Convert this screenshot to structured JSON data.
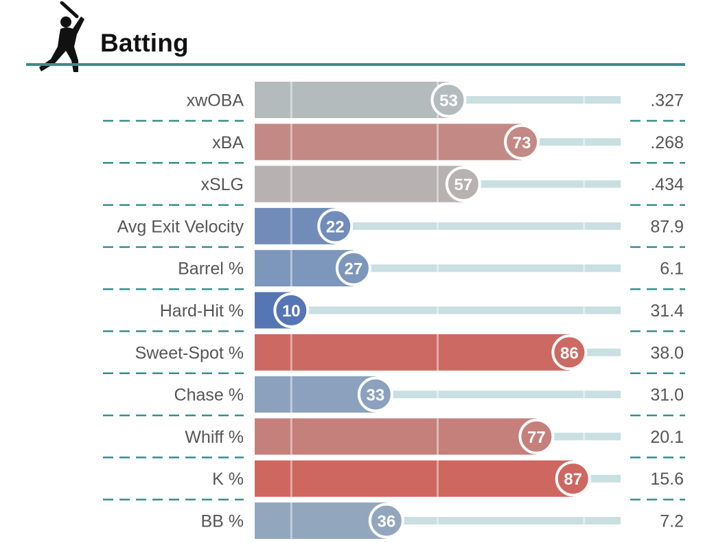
{
  "header": {
    "title": "Batting",
    "icon": "batter-silhouette-icon"
  },
  "chart_data": {
    "type": "bar",
    "title": "Batting",
    "xlim": [
      0,
      100
    ],
    "metrics": [
      {
        "label": "xwOBA",
        "percentile": 53,
        "value": ".327"
      },
      {
        "label": "xBA",
        "percentile": 73,
        "value": ".268"
      },
      {
        "label": "xSLG",
        "percentile": 57,
        "value": ".434"
      },
      {
        "label": "Avg Exit Velocity",
        "percentile": 22,
        "value": "87.9"
      },
      {
        "label": "Barrel %",
        "percentile": 27,
        "value": "6.1"
      },
      {
        "label": "Hard-Hit %",
        "percentile": 10,
        "value": "31.4"
      },
      {
        "label": "Sweet-Spot %",
        "percentile": 86,
        "value": "38.0"
      },
      {
        "label": "Chase %",
        "percentile": 33,
        "value": "31.0"
      },
      {
        "label": "Whiff %",
        "percentile": 77,
        "value": "20.1"
      },
      {
        "label": "K %",
        "percentile": 87,
        "value": "15.6"
      },
      {
        "label": "BB %",
        "percentile": 36,
        "value": "7.2"
      }
    ],
    "grid_lines": [
      10,
      50,
      90
    ],
    "colors": {
      "track": "#c9dfe1",
      "low": "#3f62b0",
      "mid": "#b2c2c4",
      "high": "#d6473c",
      "divider": "#3a8c8c",
      "label": "#555555"
    }
  }
}
